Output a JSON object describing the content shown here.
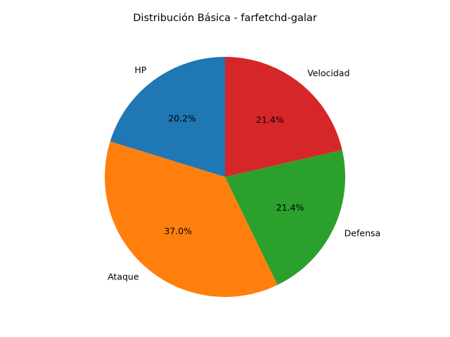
{
  "chart_data": {
    "type": "pie",
    "title": "Distribución Básica - farfetchd-galar",
    "categories": [
      "HP",
      "Ataque",
      "Defensa",
      "Velocidad"
    ],
    "values": [
      52,
      95,
      55,
      55
    ],
    "percent_labels": [
      "20.2%",
      "37.0%",
      "21.4%",
      "21.4%"
    ],
    "colors": [
      "#1f77b4",
      "#ff7f0e",
      "#2ca02c",
      "#d62728"
    ],
    "start_angle_deg": 90,
    "direction": "counterclockwise",
    "legend": "none"
  }
}
